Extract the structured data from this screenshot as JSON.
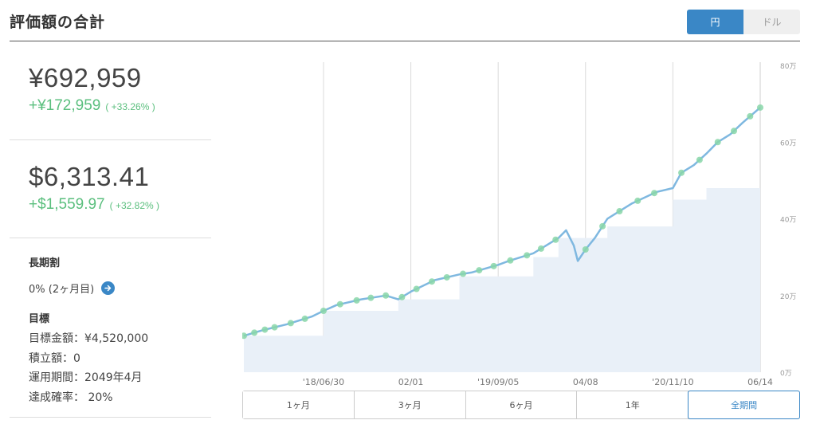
{
  "header": {
    "title": "評価額の合計"
  },
  "currency_toggle": {
    "yen": "円",
    "dollar": "ドル",
    "selected": "円"
  },
  "totals": {
    "jpy": {
      "value": "¥692,959",
      "gain": "+¥172,959",
      "gain_pct": "( +33.26% )"
    },
    "usd": {
      "value": "$6,313.41",
      "gain": "+$1,559.97",
      "gain_pct": "( +32.82% )"
    }
  },
  "long_term": {
    "title": "長期割",
    "value": "0% (2ヶ月目)"
  },
  "goal": {
    "title": "目標",
    "target": "目標金額：¥4,520,000",
    "contribution": "積立額：0",
    "period": "運用期間：2049年4月",
    "probability": "達成確率： 20%"
  },
  "range_buttons": [
    "1ヶ月",
    "3ヶ月",
    "6ヶ月",
    "1年",
    "全期間"
  ],
  "range_selected": "全期間",
  "colors": {
    "accent": "#3a87c6",
    "gain": "#5bbf7e",
    "line": "#7fb8e0",
    "area": "#e9f0f8",
    "marker": "#88d6a8"
  },
  "chart_data": {
    "type": "line",
    "y_ticks": [
      "0万",
      "20万",
      "40万",
      "60万",
      "80万"
    ],
    "ylim": [
      0,
      800000
    ],
    "x_tick_labels": [
      "'18/06/30",
      "02/01",
      "'19/09/05",
      "04/08",
      "'20/11/10",
      "06/14"
    ],
    "x_range": [
      "2017-12-15",
      "2021-06-14"
    ],
    "series": [
      {
        "name": "",
        "values": [
          [
            "2017-12-15",
            95000
          ],
          [
            "2018-02-01",
            110000
          ],
          [
            "2018-04-01",
            125000
          ],
          [
            "2018-06-01",
            145000
          ],
          [
            "2018-06-30",
            160000
          ],
          [
            "2018-08-01",
            175000
          ],
          [
            "2018-10-01",
            190000
          ],
          [
            "2018-12-01",
            200000
          ],
          [
            "2019-01-01",
            190000
          ],
          [
            "2019-02-01",
            210000
          ],
          [
            "2019-04-01",
            240000
          ],
          [
            "2019-06-01",
            255000
          ],
          [
            "2019-07-01",
            260000
          ],
          [
            "2019-09-05",
            280000
          ],
          [
            "2019-10-01",
            290000
          ],
          [
            "2019-12-01",
            310000
          ],
          [
            "2020-01-01",
            330000
          ],
          [
            "2020-02-01",
            350000
          ],
          [
            "2020-02-20",
            370000
          ],
          [
            "2020-03-10",
            330000
          ],
          [
            "2020-03-20",
            290000
          ],
          [
            "2020-04-08",
            320000
          ],
          [
            "2020-05-01",
            350000
          ],
          [
            "2020-06-01",
            400000
          ],
          [
            "2020-08-01",
            440000
          ],
          [
            "2020-10-01",
            470000
          ],
          [
            "2020-11-10",
            480000
          ],
          [
            "2020-12-01",
            520000
          ],
          [
            "2021-01-01",
            540000
          ],
          [
            "2021-02-01",
            570000
          ],
          [
            "2021-03-01",
            600000
          ],
          [
            "2021-04-01",
            620000
          ],
          [
            "2021-05-01",
            650000
          ],
          [
            "2021-06-14",
            690000
          ]
        ]
      },
      {
        "name": "",
        "values": [
          [
            "2017-12-15",
            95000
          ],
          [
            "2018-06-30",
            160000
          ],
          [
            "2019-01-01",
            190000
          ],
          [
            "2019-06-01",
            250000
          ],
          [
            "2019-12-01",
            300000
          ],
          [
            "2020-02-01",
            350000
          ],
          [
            "2020-06-01",
            380000
          ],
          [
            "2020-11-10",
            450000
          ],
          [
            "2021-02-01",
            480000
          ],
          [
            "2021-06-14",
            520000
          ]
        ]
      }
    ],
    "markers": [
      "2017-12-15",
      "2018-01-10",
      "2018-02-05",
      "2018-03-01",
      "2018-04-10",
      "2018-05-15",
      "2018-06-30",
      "2018-08-10",
      "2018-09-20",
      "2018-10-25",
      "2018-12-01",
      "2019-01-10",
      "2019-02-15",
      "2019-03-25",
      "2019-05-01",
      "2019-06-10",
      "2019-07-20",
      "2019-08-25",
      "2019-10-05",
      "2019-11-15",
      "2019-12-20",
      "2020-01-25",
      "2020-04-08",
      "2020-05-20",
      "2020-07-01",
      "2020-08-15",
      "2020-09-25",
      "2020-12-01",
      "2021-01-15",
      "2021-03-01",
      "2021-04-10",
      "2021-05-20",
      "2021-06-14"
    ]
  }
}
